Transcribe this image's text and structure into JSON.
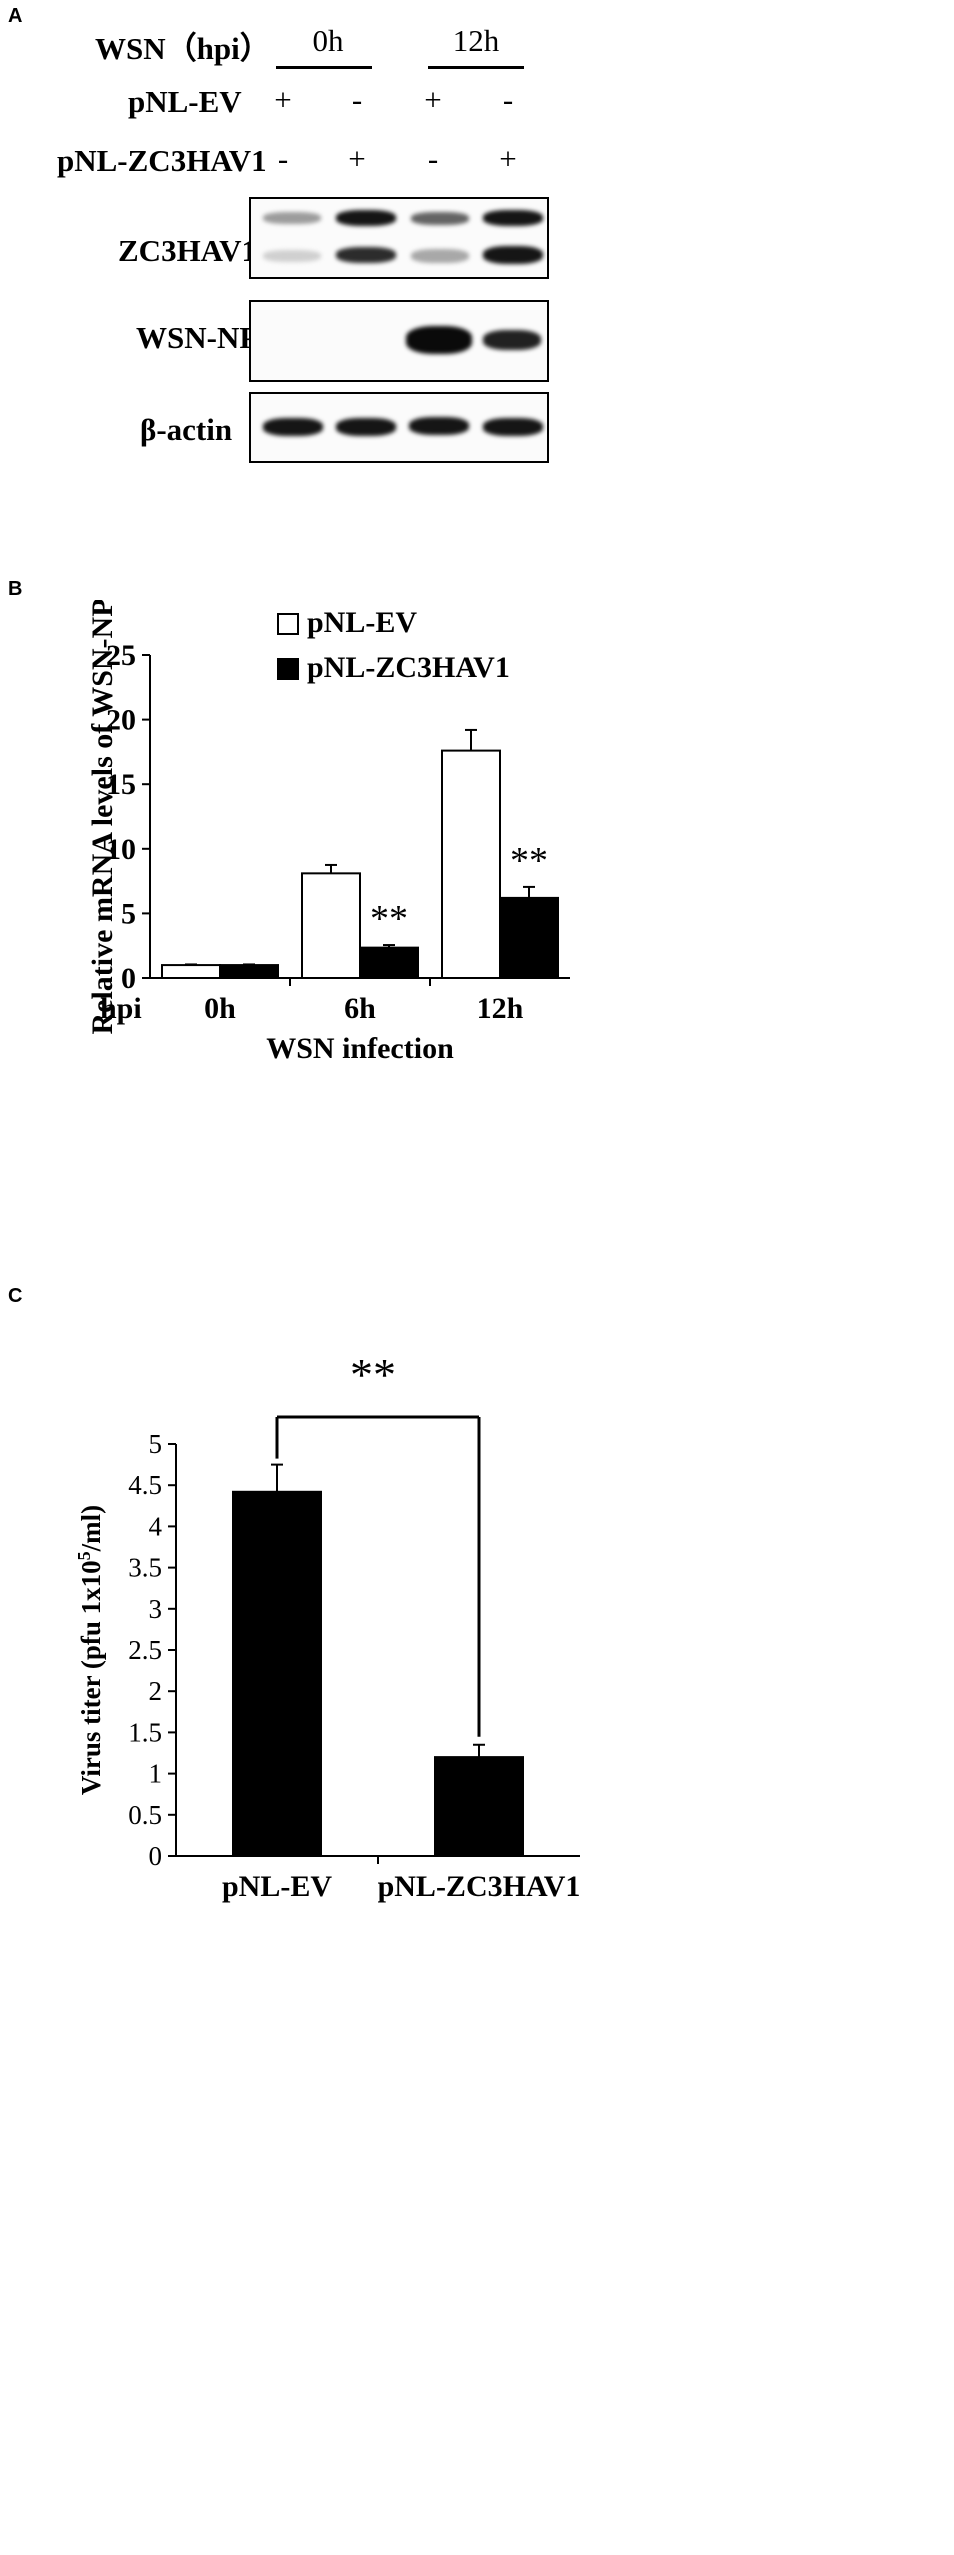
{
  "panelA": {
    "letter": "A",
    "header_label": "WSN（hpi）",
    "time_groups": [
      "0h",
      "12h"
    ],
    "rows": [
      {
        "label": "pNL-EV",
        "signs": [
          "+",
          "-",
          "+",
          "-"
        ]
      },
      {
        "label": "pNL-ZC3HAV1",
        "signs": [
          "-",
          "+",
          "-",
          "+"
        ]
      }
    ],
    "blots": [
      {
        "label": "ZC3HAV1",
        "lanes": [
          {
            "upper": 0.35,
            "lower": 0.12
          },
          {
            "upper": 0.95,
            "lower": 0.85
          },
          {
            "upper": 0.6,
            "lower": 0.3
          },
          {
            "upper": 0.95,
            "lower": 0.95
          }
        ]
      },
      {
        "label": "WSN-NP",
        "lanes": [
          {
            "main": 0.0
          },
          {
            "main": 0.0
          },
          {
            "main": 1.0
          },
          {
            "main": 0.9
          }
        ]
      },
      {
        "label": "β-actin",
        "lanes": [
          {
            "main": 0.95
          },
          {
            "main": 0.95
          },
          {
            "main": 0.95
          },
          {
            "main": 0.95
          }
        ]
      }
    ]
  },
  "chart_data": [
    {
      "panel": "B",
      "type": "bar",
      "xlabel": "WSN infection",
      "x_prefix": "hpi",
      "ylabel": "Relative mRNA levels of  WSN-NP",
      "ylim": [
        0,
        25
      ],
      "yticks": [
        0,
        5,
        10,
        15,
        20,
        25
      ],
      "categories": [
        "0h",
        "6h",
        "12h"
      ],
      "legend_position": "top-left",
      "series": [
        {
          "name": "pNL-EV",
          "fill": "#ffffff",
          "values": [
            1.0,
            8.1,
            17.6
          ],
          "errors": [
            0.05,
            0.65,
            1.6
          ]
        },
        {
          "name": "pNL-ZC3HAV1",
          "fill": "#000000",
          "values": [
            1.0,
            2.35,
            6.2
          ],
          "errors": [
            0.05,
            0.2,
            0.85
          ]
        }
      ],
      "annotations": [
        {
          "category": "6h",
          "series": "pNL-ZC3HAV1",
          "text": "**"
        },
        {
          "category": "12h",
          "series": "pNL-ZC3HAV1",
          "text": "**"
        }
      ]
    },
    {
      "panel": "C",
      "type": "bar",
      "ylabel": "Virus titer (pfu 1x10",
      "ylabel_sup": "5",
      "ylabel_tail": "/ml)",
      "ylim": [
        0,
        5
      ],
      "yticks": [
        0,
        0.5,
        1,
        1.5,
        2,
        2.5,
        3,
        3.5,
        4,
        4.5,
        5
      ],
      "categories": [
        "pNL-EV",
        "pNL-ZC3HAV1"
      ],
      "series": [
        {
          "name": "",
          "fill": "#000000",
          "values": [
            4.42,
            1.2
          ],
          "errors": [
            0.33,
            0.15
          ]
        }
      ],
      "significance": {
        "text": "**",
        "from": 0,
        "to": 1
      }
    }
  ]
}
